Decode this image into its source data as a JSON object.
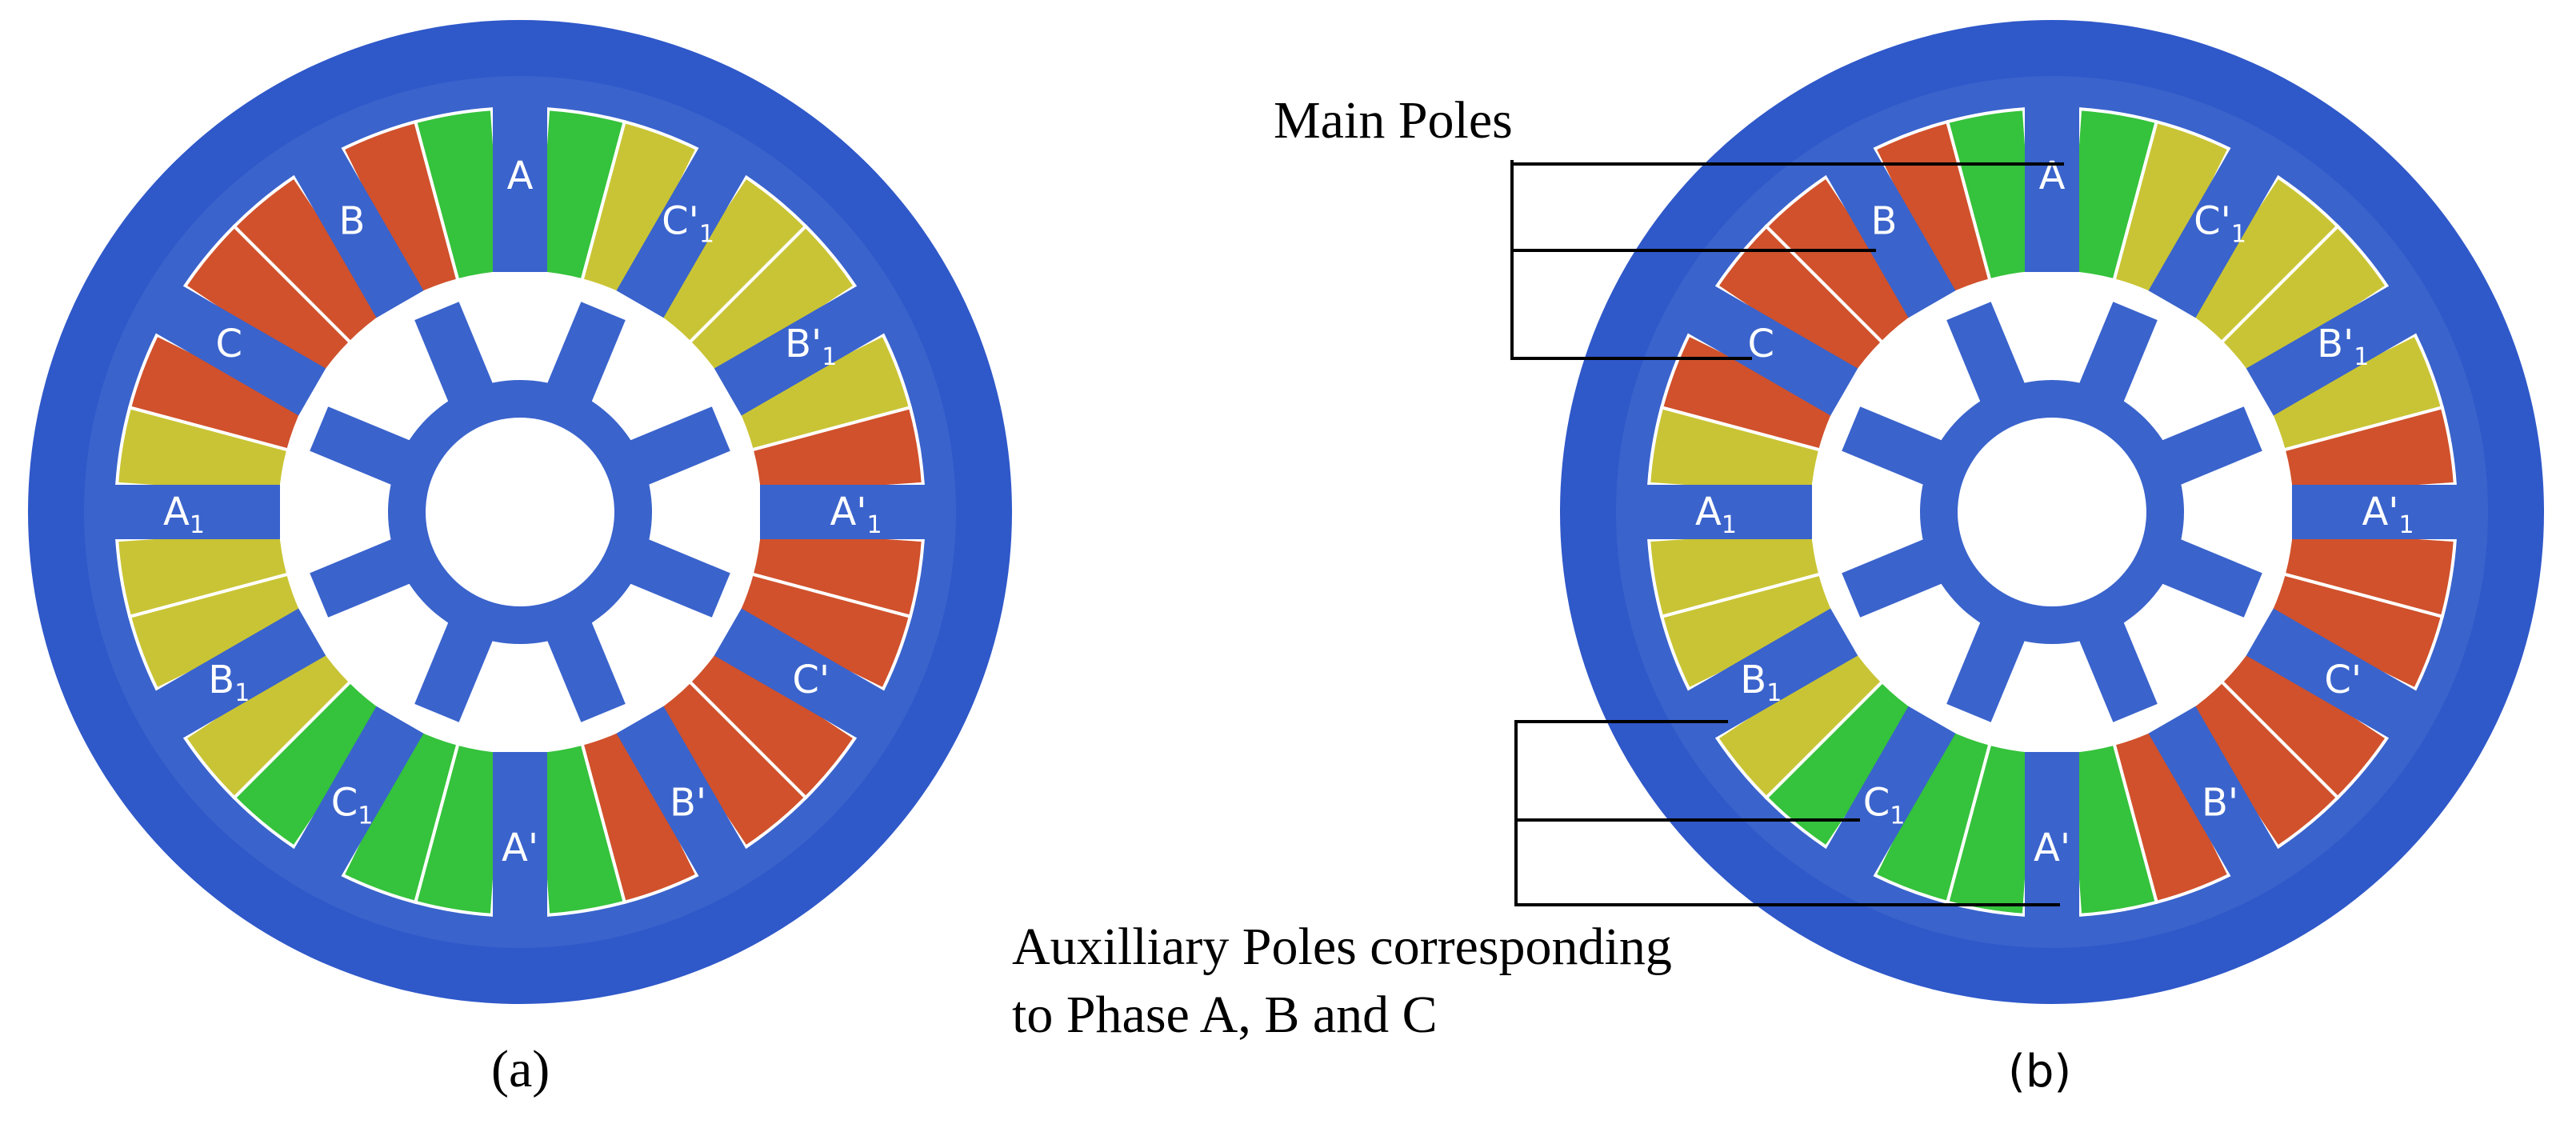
{
  "colors": {
    "stator": "#3a63cc",
    "stator_outer": "#2f58c9",
    "winding_green": "#35c23c",
    "winding_yellow": "#c9c435",
    "winding_red": "#d0512c",
    "winding_edge": "#ffffff"
  },
  "pole_labels": [
    {
      "id": "A",
      "base": "A",
      "prime": false,
      "sub": ""
    },
    {
      "id": "C-prime-1",
      "base": "C",
      "prime": true,
      "sub": "1"
    },
    {
      "id": "B-prime-1",
      "base": "B",
      "prime": true,
      "sub": "1"
    },
    {
      "id": "A-prime-1",
      "base": "A",
      "prime": true,
      "sub": "1"
    },
    {
      "id": "C-prime",
      "base": "C",
      "prime": true,
      "sub": ""
    },
    {
      "id": "B-prime",
      "base": "B",
      "prime": true,
      "sub": ""
    },
    {
      "id": "A-prime",
      "base": "A",
      "prime": true,
      "sub": ""
    },
    {
      "id": "C-1",
      "base": "C",
      "prime": false,
      "sub": "1"
    },
    {
      "id": "B-1",
      "base": "B",
      "prime": false,
      "sub": "1"
    },
    {
      "id": "A-1",
      "base": "A",
      "prime": false,
      "sub": "1"
    },
    {
      "id": "C",
      "base": "C",
      "prime": false,
      "sub": ""
    },
    {
      "id": "B",
      "base": "B",
      "prime": false,
      "sub": ""
    }
  ],
  "slot_winding_colors": [
    [
      "green",
      "yellow"
    ],
    [
      "yellow",
      "yellow"
    ],
    [
      "yellow",
      "red"
    ],
    [
      "red",
      "red"
    ],
    [
      "red",
      "red"
    ],
    [
      "red",
      "green"
    ],
    [
      "green",
      "green"
    ],
    [
      "green",
      "yellow"
    ],
    [
      "yellow",
      "yellow"
    ],
    [
      "yellow",
      "red"
    ],
    [
      "red",
      "red"
    ],
    [
      "red",
      "green"
    ]
  ],
  "panels": {
    "a": {
      "caption": "(a)"
    },
    "b": {
      "caption": "(b)"
    }
  },
  "annotations": {
    "main_poles": "Main Poles",
    "auxiliary_line1": "Auxilliary Poles corresponding",
    "auxiliary_line2": "to Phase A, B and C"
  }
}
